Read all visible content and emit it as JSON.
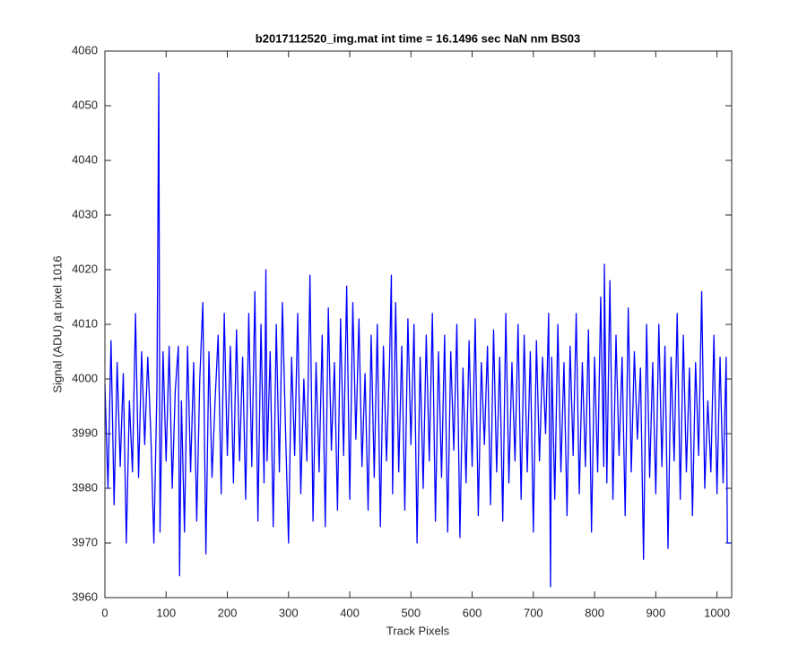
{
  "chart_data": {
    "type": "line",
    "title": "b2017112520_img.mat int time = 16.1496 sec  NaN nm BS03",
    "x_label": "Track Pixels",
    "y_label": "Signal (ADU) at pixel 1016",
    "xlim": [
      0,
      1024
    ],
    "ylim": [
      3960,
      4060
    ],
    "xticks": [
      0,
      100,
      200,
      300,
      400,
      500,
      600,
      700,
      800,
      900,
      1000
    ],
    "yticks": [
      3960,
      3970,
      3980,
      3990,
      4000,
      4010,
      4020,
      4030,
      4040,
      4050,
      4060
    ],
    "grid": false,
    "series": [
      {
        "color": "#0000ff",
        "x": [
          0,
          5,
          10,
          15,
          20,
          25,
          30,
          35,
          40,
          45,
          50,
          55,
          60,
          65,
          70,
          75,
          80,
          85,
          88,
          90,
          95,
          100,
          105,
          110,
          115,
          120,
          122,
          125,
          130,
          135,
          140,
          145,
          150,
          155,
          160,
          165,
          170,
          175,
          180,
          185,
          190,
          195,
          200,
          205,
          210,
          215,
          220,
          225,
          230,
          235,
          240,
          245,
          250,
          255,
          260,
          263,
          265,
          270,
          275,
          280,
          285,
          290,
          295,
          300,
          305,
          310,
          315,
          320,
          325,
          330,
          335,
          340,
          345,
          350,
          355,
          360,
          365,
          370,
          375,
          380,
          385,
          390,
          395,
          400,
          405,
          410,
          415,
          420,
          425,
          430,
          435,
          440,
          445,
          450,
          455,
          460,
          465,
          468,
          470,
          475,
          480,
          485,
          490,
          495,
          500,
          505,
          510,
          515,
          520,
          525,
          530,
          535,
          540,
          545,
          550,
          555,
          560,
          565,
          570,
          575,
          580,
          585,
          590,
          595,
          600,
          605,
          610,
          615,
          620,
          625,
          630,
          635,
          640,
          645,
          650,
          655,
          660,
          665,
          670,
          675,
          680,
          685,
          690,
          695,
          700,
          705,
          710,
          715,
          720,
          725,
          728,
          730,
          735,
          740,
          745,
          750,
          755,
          760,
          765,
          770,
          775,
          780,
          785,
          790,
          795,
          800,
          805,
          810,
          815,
          816,
          820,
          825,
          830,
          835,
          840,
          845,
          850,
          855,
          860,
          865,
          870,
          875,
          880,
          885,
          890,
          895,
          900,
          905,
          910,
          915,
          920,
          925,
          930,
          935,
          940,
          945,
          950,
          955,
          960,
          965,
          970,
          975,
          980,
          985,
          990,
          995,
          1000,
          1005,
          1010,
          1015,
          1017,
          1020,
          1023
        ],
        "values": [
          3999,
          3980,
          4007,
          3977,
          4003,
          3984,
          4001,
          3970,
          3996,
          3983,
          4012,
          3982,
          4005,
          3988,
          4004,
          3990,
          3970,
          3998,
          4056,
          3972,
          4005,
          3985,
          4006,
          3980,
          3998,
          4006,
          3964,
          3996,
          3972,
          4006,
          3983,
          4003,
          3974,
          4000,
          4014,
          3968,
          4005,
          3982,
          3996,
          4008,
          3979,
          4012,
          3986,
          4006,
          3981,
          4009,
          3985,
          4004,
          3978,
          4012,
          3984,
          4016,
          3974,
          4010,
          3981,
          4020,
          3985,
          4005,
          3973,
          4010,
          3983,
          4014,
          3991,
          3970,
          4004,
          3986,
          4012,
          3979,
          4000,
          3985,
          4019,
          3974,
          4003,
          3983,
          4008,
          3973,
          4013,
          3987,
          4003,
          3976,
          4011,
          3986,
          4017,
          3978,
          4014,
          3989,
          4011,
          3984,
          4001,
          3976,
          4008,
          3982,
          4010,
          3973,
          4006,
          3985,
          4003,
          4019,
          3979,
          4014,
          3983,
          4006,
          3976,
          4011,
          3988,
          4010,
          3970,
          4004,
          3980,
          4008,
          3985,
          4012,
          3974,
          4005,
          3982,
          4008,
          3972,
          4005,
          3987,
          4010,
          3971,
          4002,
          3981,
          4007,
          3984,
          4011,
          3975,
          4003,
          3988,
          4006,
          3977,
          4009,
          3983,
          4004,
          3974,
          4012,
          3981,
          4003,
          3985,
          4010,
          3978,
          4008,
          3983,
          4005,
          3972,
          4007,
          3985,
          4004,
          3990,
          4012,
          3962,
          4004,
          3978,
          4010,
          3983,
          4003,
          3975,
          4006,
          3986,
          4012,
          3979,
          4003,
          3984,
          4009,
          3972,
          4004,
          3983,
          4015,
          3984,
          4021,
          3981,
          4018,
          3978,
          4008,
          3986,
          4004,
          3975,
          4013,
          3983,
          4005,
          3989,
          4002,
          3967,
          4010,
          3982,
          4003,
          3979,
          4010,
          3984,
          4006,
          3969,
          4004,
          3985,
          4012,
          3978,
          4008,
          3983,
          4002,
          3975,
          4003,
          3986,
          4016,
          3980,
          3996,
          3983,
          4008,
          3979,
          4004,
          3981,
          4004,
          3970,
          3970,
          3970
        ]
      }
    ]
  }
}
